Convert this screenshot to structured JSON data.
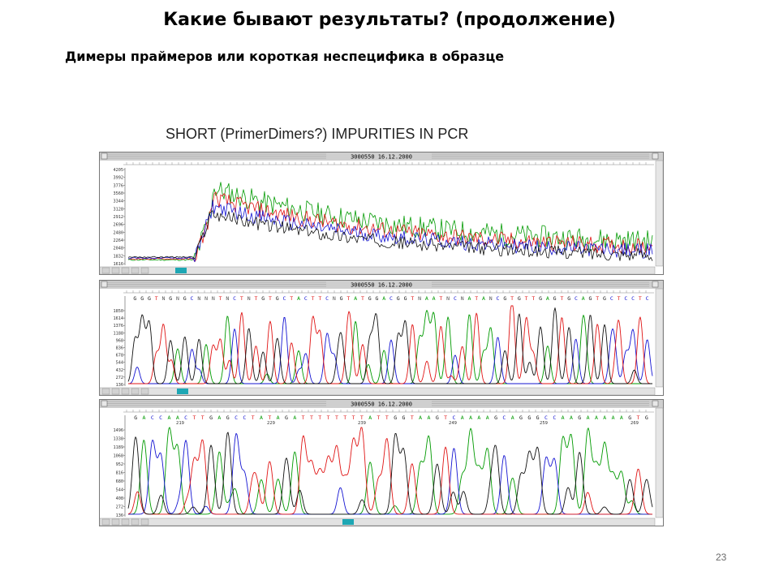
{
  "slide": {
    "title": "Какие бывают результаты? (продолжение)",
    "subtitle": "Димеры праймеров или короткая неспецифика в образце",
    "figure_caption": "SHORT (PrimerDimers?) IMPURITIES IN PCR",
    "page_number": "23"
  },
  "panels": [
    {
      "window_title": "3000550 16.12.2000",
      "kind": "raw",
      "y_ticks": [
        "4205",
        "3992",
        "3776",
        "3560",
        "3344",
        "3128",
        "2912",
        "2696",
        "2480",
        "2264",
        "2048",
        "1832",
        "1616"
      ]
    },
    {
      "window_title": "3000550 16.12.2000",
      "kind": "called",
      "bases": "GGGTNGNGCNNNTNCTNTGTGCTACTTCNGTATGGACGGTNAATNCNATANCGTGTTGAGTGCAGTGCTCCTC",
      "y_ticks": [
        "1850",
        "1614",
        "1376",
        "1188",
        "968",
        "836",
        "678",
        "544",
        "432",
        "272",
        "136"
      ]
    },
    {
      "window_title": "3000550 16.12.2000",
      "kind": "called",
      "bases": "GACCAACTTGAGCCTATAGATTTTTTTTATTGGTAAGTCAAAAGCAGGGCCAAGAAAAAGTG",
      "position_labels": [
        "219",
        "229",
        "239",
        "249",
        "259",
        "269"
      ],
      "y_ticks": [
        "1496",
        "1338",
        "1189",
        "1068",
        "952",
        "816",
        "680",
        "544",
        "408",
        "272",
        "136"
      ]
    }
  ],
  "colors": {
    "A": "#009a00",
    "C": "#1414d2",
    "G": "#111111",
    "T": "#e01414",
    "window_chrome": "#cfcfcf",
    "slide_bg": "#ffffff"
  }
}
